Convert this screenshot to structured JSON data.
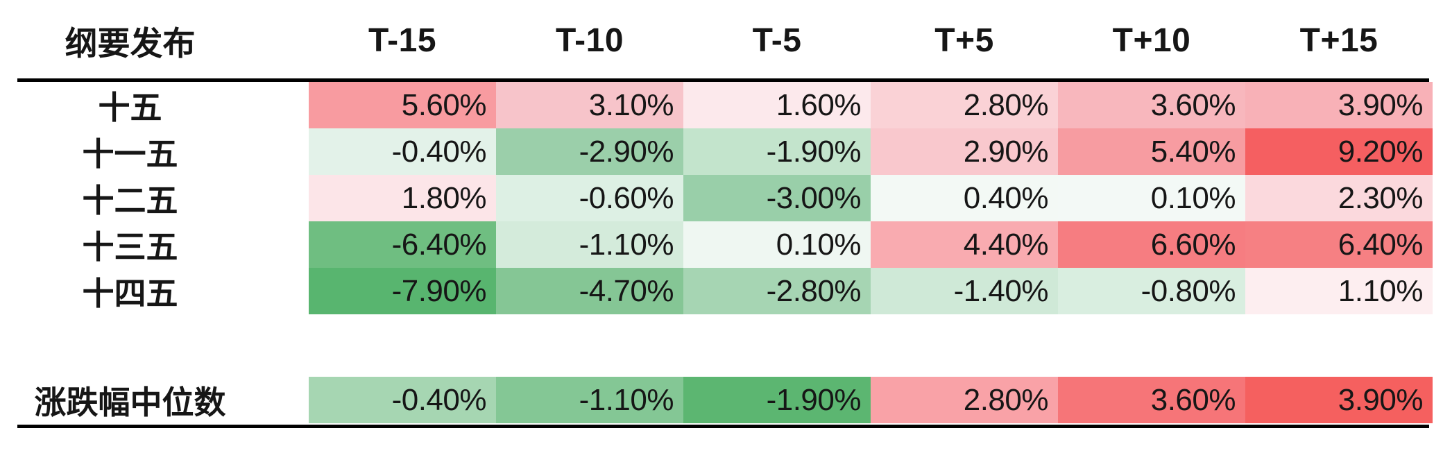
{
  "figure": {
    "background": "#ffffff",
    "divider_color": "#000000",
    "text_color": "#161616"
  },
  "chart_data": {
    "type": "heatmap",
    "corner_label": "纲要发布",
    "columns": [
      "T-15",
      "T-10",
      "T-5",
      "T+5",
      "T+10",
      "T+15"
    ],
    "value_format": "0.00%",
    "rows": [
      {
        "label": "十五",
        "values": [
          5.6,
          3.1,
          1.6,
          2.8,
          3.6,
          3.9
        ],
        "colors": [
          "#f89ba0",
          "#f7c4ca",
          "#fce9ec",
          "#fad2d6",
          "#f8b7bd",
          "#f8b1b7"
        ]
      },
      {
        "label": "十一五",
        "values": [
          -0.4,
          -2.9,
          -1.9,
          2.9,
          5.4,
          9.2
        ],
        "colors": [
          "#e3f2e9",
          "#9bcfaa",
          "#c3e4cc",
          "#f9c8cd",
          "#f79ca1",
          "#f55f61"
        ]
      },
      {
        "label": "十二五",
        "values": [
          1.8,
          -0.6,
          -3.0,
          0.4,
          0.1,
          2.3
        ],
        "colors": [
          "#fce5e8",
          "#ddf0e4",
          "#99cfa9",
          "#f3f9f5",
          "#f3f9f6",
          "#fbd9dd"
        ]
      },
      {
        "label": "十三五",
        "values": [
          -6.4,
          -1.1,
          0.1,
          4.4,
          6.6,
          6.4
        ],
        "colors": [
          "#6fbe81",
          "#d4ebdb",
          "#eff7f2",
          "#f9abb0",
          "#f67d81",
          "#f68083"
        ]
      },
      {
        "label": "十四五",
        "values": [
          -7.9,
          -4.7,
          -2.8,
          -1.4,
          -0.8,
          1.1
        ],
        "colors": [
          "#58b56f",
          "#85c695",
          "#a6d5b3",
          "#cfe9d7",
          "#d9eee0",
          "#fdeef0"
        ]
      }
    ],
    "median_row": {
      "label": "涨跌幅中位数",
      "values": [
        -0.4,
        -1.1,
        -1.9,
        2.8,
        3.6,
        3.9
      ],
      "colors": [
        "#a6d6b2",
        "#84c795",
        "#5cb671",
        "#f9a2a7",
        "#f67578",
        "#f5605f"
      ]
    },
    "palette": {
      "positive_max": "#f5605f",
      "negative_max": "#58b56f",
      "neutral": "#ffffff"
    },
    "legend_position": "none",
    "grid": false
  }
}
